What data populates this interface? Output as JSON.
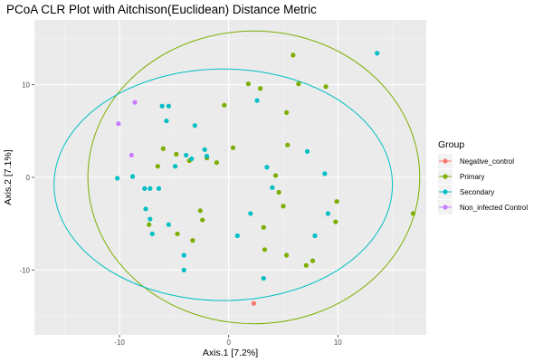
{
  "chart_data": {
    "type": "scatter",
    "title": "PCoA CLR Plot with Aitchison(Euclidean) Distance Metric",
    "xlabel": "Axis.1   [7.2%]",
    "ylabel": "Axis.2   [7.1%]",
    "xlim": [
      -17.8,
      18.1
    ],
    "ylim": [
      -17.0,
      17.0
    ],
    "x_ticks": [
      -10,
      0,
      10
    ],
    "y_ticks": [
      -10,
      0,
      10
    ],
    "grid": true,
    "legend": {
      "title": "Group",
      "position": "right"
    },
    "series": [
      {
        "name": "Negative_control",
        "color": "#f8766d",
        "points": [
          [
            2.3,
            -13.6
          ]
        ]
      },
      {
        "name": "Primary",
        "color": "#7cae00",
        "points": [
          [
            5.9,
            13.2
          ],
          [
            1.8,
            10.1
          ],
          [
            2.9,
            9.6
          ],
          [
            6.4,
            10.1
          ],
          [
            8.9,
            9.8
          ],
          [
            -0.4,
            7.8
          ],
          [
            5.3,
            7.0
          ],
          [
            5.4,
            3.5
          ],
          [
            0.4,
            3.2
          ],
          [
            -6.0,
            3.1
          ],
          [
            -4.8,
            2.5
          ],
          [
            -2.0,
            2.1
          ],
          [
            -1.1,
            1.6
          ],
          [
            -6.5,
            1.2
          ],
          [
            -3.6,
            1.8
          ],
          [
            4.3,
            0.2
          ],
          [
            4.6,
            -1.6
          ],
          [
            9.9,
            -2.6
          ],
          [
            5.0,
            -3.1
          ],
          [
            -2.6,
            -3.6
          ],
          [
            -2.4,
            -4.6
          ],
          [
            -7.3,
            -5.1
          ],
          [
            -4.7,
            -6.1
          ],
          [
            -3.3,
            -6.8
          ],
          [
            3.2,
            -5.4
          ],
          [
            9.8,
            -4.8
          ],
          [
            16.9,
            -3.9
          ],
          [
            3.3,
            -7.8
          ],
          [
            5.3,
            -8.4
          ],
          [
            7.7,
            -9.0
          ],
          [
            7.1,
            -9.5
          ]
        ]
      },
      {
        "name": "Secondary",
        "color": "#00bfc4",
        "points": [
          [
            13.6,
            13.4
          ],
          [
            -6.1,
            7.7
          ],
          [
            -5.5,
            7.7
          ],
          [
            2.6,
            8.3
          ],
          [
            -5.7,
            6.1
          ],
          [
            -3.1,
            5.6
          ],
          [
            -2.2,
            3.0
          ],
          [
            -2.0,
            2.3
          ],
          [
            -3.4,
            2.0
          ],
          [
            -3.9,
            2.4
          ],
          [
            -4.9,
            1.2
          ],
          [
            7.2,
            2.8
          ],
          [
            3.5,
            1.1
          ],
          [
            8.8,
            0.4
          ],
          [
            -10.2,
            -0.1
          ],
          [
            -8.8,
            0.1
          ],
          [
            4.0,
            -1.1
          ],
          [
            -7.7,
            -1.2
          ],
          [
            -7.2,
            -1.2
          ],
          [
            -6.4,
            -1.2
          ],
          [
            -7.6,
            -3.4
          ],
          [
            2.0,
            -3.9
          ],
          [
            9.1,
            -3.9
          ],
          [
            -7.2,
            -4.5
          ],
          [
            -5.5,
            -5.1
          ],
          [
            -7.0,
            -6.1
          ],
          [
            0.8,
            -6.3
          ],
          [
            7.9,
            -6.3
          ],
          [
            -4.1,
            -8.4
          ],
          [
            -4.1,
            -10.0
          ],
          [
            3.2,
            -10.9
          ]
        ]
      },
      {
        "name": "Non_infected Control",
        "color": "#c77cff",
        "points": [
          [
            -8.6,
            8.1
          ],
          [
            -10.1,
            5.8
          ],
          [
            -8.9,
            2.4
          ]
        ]
      }
    ],
    "ellipses": [
      {
        "group": "Primary",
        "color": "#7cae00",
        "cx": 2.3,
        "cy": 0.0,
        "rx": 15.2,
        "ry": 15.8
      },
      {
        "group": "Secondary",
        "color": "#00bfc4",
        "cx": -0.5,
        "cy": -0.8,
        "rx": 15.5,
        "ry": 12.5
      }
    ]
  }
}
